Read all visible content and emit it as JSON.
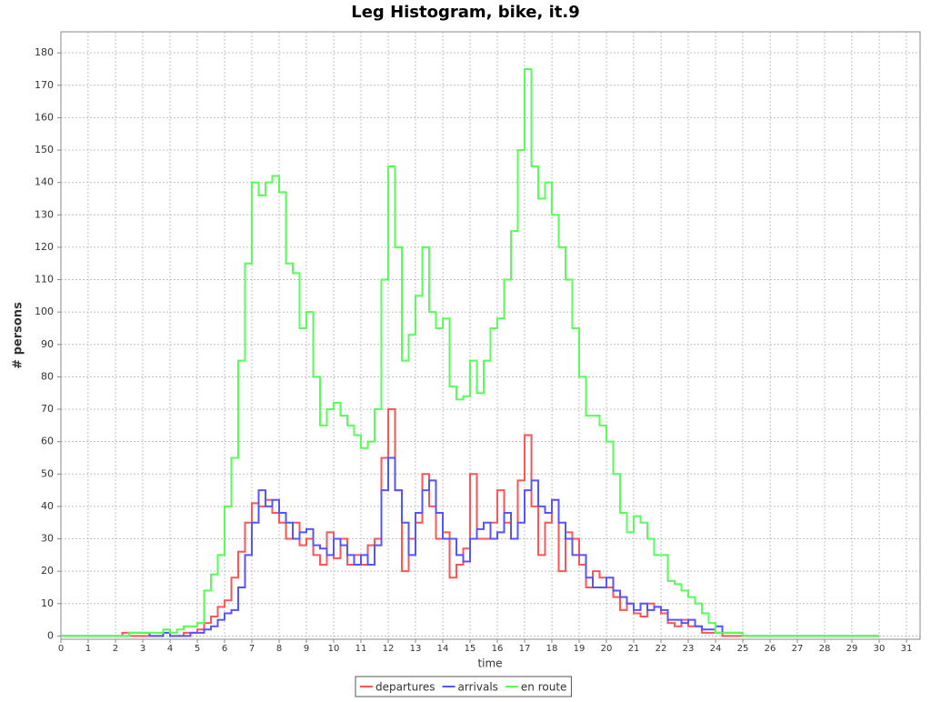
{
  "chart_data": {
    "type": "line",
    "step": true,
    "title": "Leg Histogram, bike, it.9",
    "x_label": "time",
    "y_label": "# persons",
    "xlim": [
      0,
      31.5
    ],
    "ylim": [
      -1,
      186.5
    ],
    "xticks": [
      0,
      1,
      2,
      3,
      4,
      5,
      6,
      7,
      8,
      9,
      10,
      11,
      12,
      13,
      14,
      15,
      16,
      17,
      18,
      19,
      20,
      21,
      22,
      23,
      24,
      25,
      26,
      27,
      28,
      29,
      30,
      31
    ],
    "yticks": [
      0,
      10,
      20,
      30,
      40,
      50,
      60,
      70,
      80,
      90,
      100,
      110,
      120,
      130,
      140,
      150,
      160,
      170,
      180
    ],
    "grid": true,
    "legend": "bottom",
    "x": [
      0,
      2,
      2.25,
      2.5,
      2.75,
      3,
      3.25,
      3.5,
      3.75,
      4,
      4.25,
      4.5,
      4.75,
      5,
      5.25,
      5.5,
      5.75,
      6,
      6.25,
      6.5,
      6.75,
      7,
      7.25,
      7.5,
      7.75,
      8,
      8.25,
      8.5,
      8.75,
      9,
      9.25,
      9.5,
      9.75,
      10,
      10.25,
      10.5,
      10.75,
      11,
      11.25,
      11.5,
      11.75,
      12,
      12.25,
      12.5,
      12.75,
      13,
      13.25,
      13.5,
      13.75,
      14,
      14.25,
      14.5,
      14.75,
      15,
      15.25,
      15.5,
      15.75,
      16,
      16.25,
      16.5,
      16.75,
      17,
      17.25,
      17.5,
      17.75,
      18,
      18.25,
      18.5,
      18.75,
      19,
      19.25,
      19.5,
      19.75,
      20,
      20.25,
      20.5,
      20.75,
      21,
      21.25,
      21.5,
      21.75,
      22,
      22.25,
      22.5,
      22.75,
      23,
      23.25,
      23.5,
      23.75,
      24,
      24.25,
      24.5,
      24.75,
      25,
      30
    ],
    "series": [
      {
        "name": "departures",
        "color": "#ff5555",
        "values": [
          0,
          0,
          1,
          0,
          0,
          0,
          0,
          0,
          1,
          0,
          0,
          1,
          1,
          2,
          4,
          6,
          9,
          11,
          18,
          26,
          35,
          41,
          40,
          42,
          38,
          35,
          30,
          35,
          28,
          30,
          25,
          22,
          32,
          24,
          30,
          22,
          25,
          22,
          28,
          30,
          55,
          70,
          45,
          20,
          30,
          35,
          50,
          40,
          30,
          32,
          18,
          22,
          27,
          50,
          30,
          30,
          35,
          45,
          35,
          30,
          48,
          62,
          40,
          25,
          35,
          42,
          20,
          32,
          30,
          22,
          15,
          20,
          18,
          15,
          12,
          8,
          10,
          7,
          6,
          10,
          9,
          7,
          4,
          3,
          5,
          3,
          3,
          1,
          1,
          1,
          0,
          0,
          0,
          0,
          0
        ]
      },
      {
        "name": "arrivals",
        "color": "#5555ff",
        "values": [
          0,
          0,
          0,
          1,
          1,
          1,
          0,
          0,
          1,
          0,
          0,
          0,
          1,
          1,
          2,
          3,
          5,
          7,
          8,
          15,
          25,
          35,
          45,
          40,
          42,
          38,
          35,
          30,
          32,
          33,
          28,
          27,
          25,
          30,
          28,
          25,
          22,
          25,
          22,
          28,
          45,
          55,
          45,
          35,
          25,
          38,
          45,
          48,
          38,
          30,
          30,
          25,
          23,
          30,
          33,
          35,
          30,
          32,
          38,
          30,
          35,
          45,
          48,
          40,
          38,
          42,
          35,
          30,
          25,
          25,
          18,
          15,
          15,
          18,
          14,
          12,
          10,
          8,
          10,
          8,
          9,
          8,
          5,
          5,
          4,
          5,
          3,
          2,
          2,
          3,
          1,
          1,
          1,
          0,
          0
        ]
      },
      {
        "name": "en route",
        "color": "#55ff55",
        "values": [
          0,
          0,
          0,
          1,
          1,
          1,
          1,
          1,
          2,
          1,
          2,
          3,
          3,
          4,
          14,
          19,
          25,
          40,
          55,
          85,
          115,
          140,
          136,
          140,
          142,
          137,
          115,
          112,
          95,
          100,
          80,
          65,
          70,
          72,
          68,
          65,
          62,
          58,
          60,
          70,
          110,
          145,
          120,
          85,
          93,
          105,
          120,
          100,
          95,
          98,
          77,
          73,
          74,
          85,
          75,
          85,
          95,
          98,
          110,
          125,
          150,
          175,
          145,
          135,
          140,
          130,
          120,
          110,
          95,
          80,
          68,
          68,
          65,
          60,
          50,
          38,
          32,
          37,
          35,
          30,
          25,
          25,
          17,
          16,
          14,
          12,
          10,
          7,
          4,
          1,
          1,
          1,
          1,
          0,
          0
        ]
      }
    ]
  }
}
